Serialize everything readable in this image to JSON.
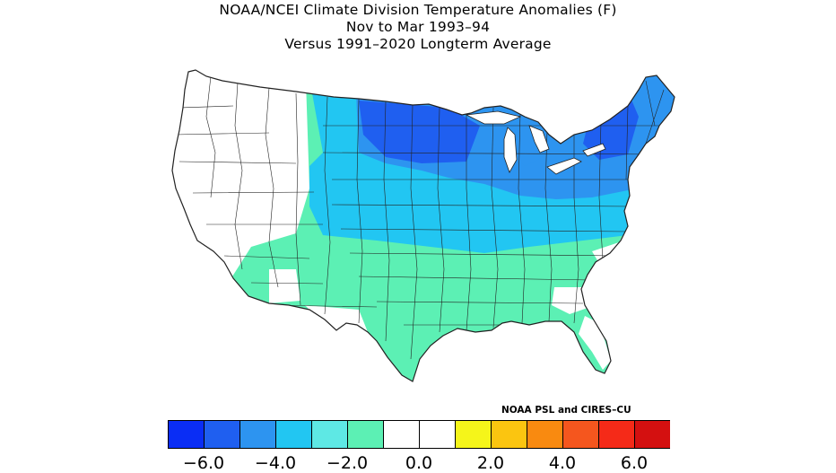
{
  "title": {
    "line1": "NOAA/NCEI Climate Division Temperature Anomalies (F)",
    "line2": "Nov to Mar 1993–94",
    "line3": "Versus 1991–2020 Longterm Average"
  },
  "credit": "NOAA PSL and CIRES–CU",
  "legend": {
    "colors": [
      "#0a2df5",
      "#1f5ff0",
      "#2d94f0",
      "#22c6f2",
      "#5ee8e4",
      "#5cf0b4",
      "#ffffff",
      "#ffffff",
      "#f5f51a",
      "#fbc510",
      "#f98a10",
      "#f5561e",
      "#f52a18",
      "#d41010"
    ],
    "tick_labels": [
      "−6.0",
      "−4.0",
      "−2.0",
      "0.0",
      "2.0",
      "4.0",
      "6.0"
    ]
  },
  "map": {
    "region": "Contiguous United States climate divisions",
    "anomaly_colors": {
      "strong_cold": "#1f5ff0",
      "cold": "#2d94f0",
      "cool": "#22c6f2",
      "slightly_cool": "#5cf0b4",
      "near_normal": "#ffffff"
    }
  }
}
